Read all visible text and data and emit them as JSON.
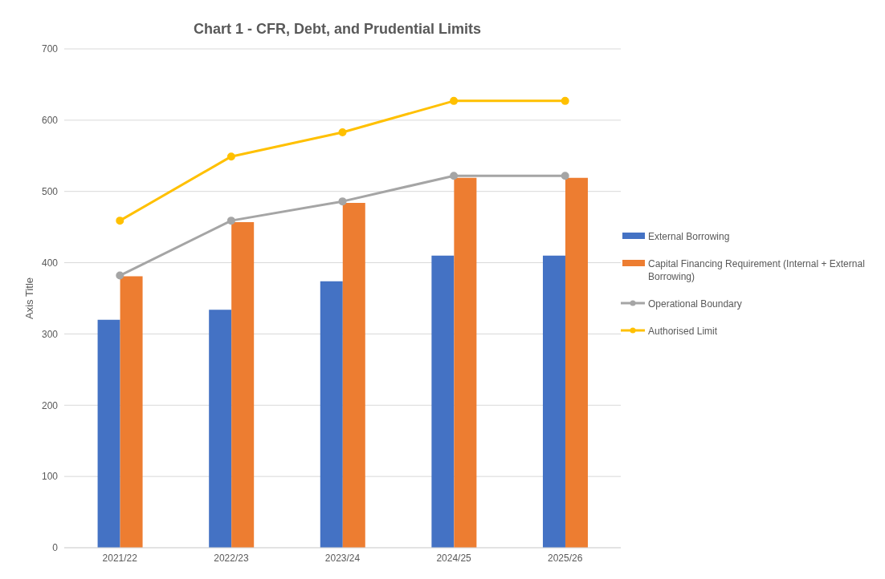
{
  "chart_data": {
    "type": "bar",
    "title": "Chart 1 - CFR, Debt, and Prudential Limits",
    "ylabel": "Axis Title",
    "categories": [
      "2021/22",
      "2022/23",
      "2023/24",
      "2024/25",
      "2025/26"
    ],
    "series": [
      {
        "name": "External Borrowing",
        "color": "#4472c4",
        "values": [
          320,
          334,
          374,
          410,
          410
        ]
      },
      {
        "name": "Capital Financing Requirement (Internal + External Borrowing)",
        "color": "#ed7d31",
        "values": [
          381,
          457,
          484,
          519,
          519
        ]
      },
      {
        "name": "Operational Boundary",
        "type": "line",
        "color": "#a5a5a5",
        "marker": "circle",
        "values": [
          382,
          459,
          486,
          522,
          522
        ]
      },
      {
        "name": "Authorised Limit",
        "type": "line",
        "color": "#ffc000",
        "marker": "circle",
        "values": [
          459,
          549,
          583,
          627,
          627
        ]
      }
    ],
    "ylim": [
      0,
      700
    ],
    "yticks": [
      0,
      100,
      200,
      300,
      400,
      500,
      600,
      700
    ],
    "grid": "y",
    "legend": "right"
  }
}
